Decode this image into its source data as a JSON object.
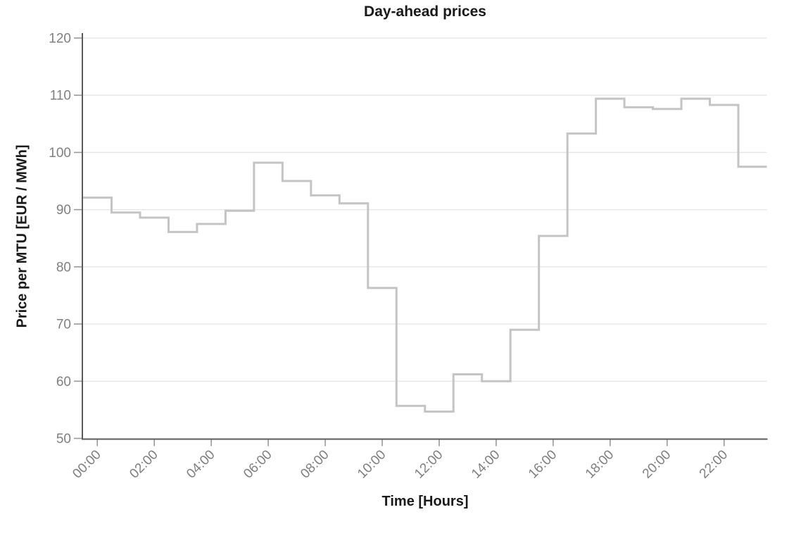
{
  "page_title": "Day-ahead prices",
  "chart_data": {
    "type": "line",
    "line_style": "step-mid",
    "title": "Day-ahead prices",
    "xlabel": "Time [Hours]",
    "ylabel": "Price per MTU [EUR / MWh]",
    "categories": [
      "00:00",
      "01:00",
      "02:00",
      "03:00",
      "04:00",
      "05:00",
      "06:00",
      "07:00",
      "08:00",
      "09:00",
      "10:00",
      "11:00",
      "12:00",
      "13:00",
      "14:00",
      "15:00",
      "16:00",
      "17:00",
      "18:00",
      "19:00",
      "20:00",
      "21:00",
      "22:00",
      "23:00"
    ],
    "series": [
      {
        "name": "Day-ahead price",
        "unit": "EUR/MWh",
        "values": [
          92.1,
          89.5,
          88.6,
          86.1,
          87.5,
          89.8,
          98.2,
          95.0,
          92.5,
          91.1,
          76.3,
          55.7,
          54.7,
          61.2,
          60.0,
          69.0,
          85.4,
          103.3,
          109.4,
          107.9,
          107.6,
          109.4,
          108.3,
          97.5
        ]
      }
    ],
    "ylim": [
      50,
      120
    ],
    "yticks": [
      50,
      60,
      70,
      80,
      90,
      100,
      110,
      120
    ],
    "xtick_labels": [
      "00:00",
      "02:00",
      "04:00",
      "06:00",
      "08:00",
      "10:00",
      "12:00",
      "14:00",
      "16:00",
      "18:00",
      "20:00",
      "22:00"
    ],
    "xtick_hours": [
      0,
      2,
      4,
      6,
      8,
      10,
      12,
      14,
      16,
      18,
      20,
      22
    ],
    "xtick_rotation_deg": -45,
    "grid": "horizontal",
    "legend_position": "none",
    "colors": {
      "line": "#c4c4c4",
      "grid": "#e6e6e6",
      "axis": "#5a5a5a",
      "tick": "#999999",
      "tick_label": "#7f7f7f",
      "text": "#1a1a1a",
      "background": "#ffffff"
    }
  }
}
